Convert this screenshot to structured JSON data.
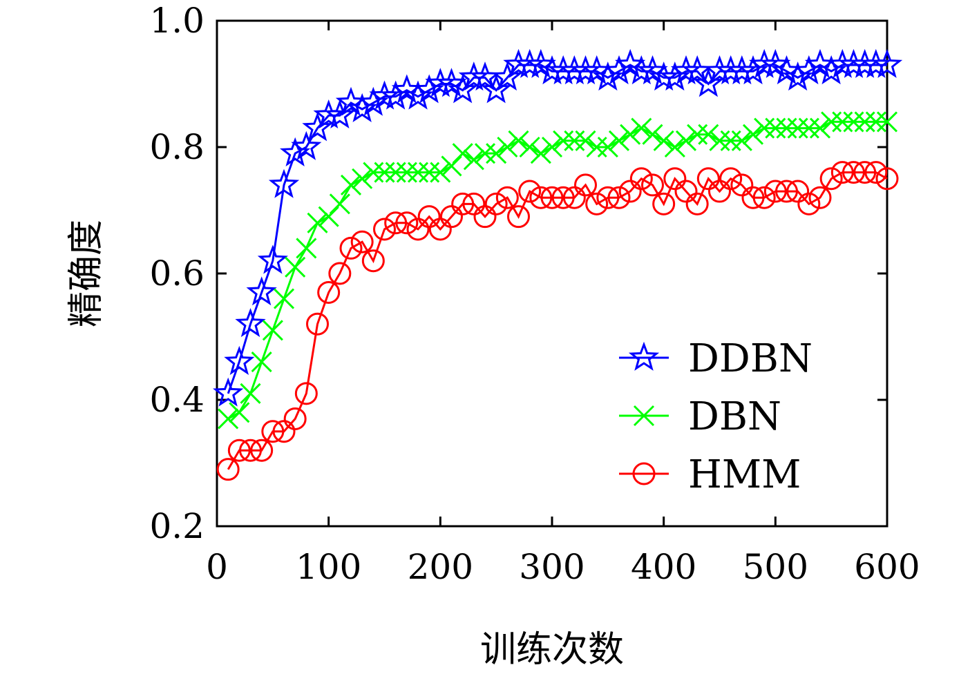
{
  "chart_data": {
    "type": "line",
    "title": "",
    "xlabel": "训练次数",
    "ylabel": "精确度",
    "xlim": [
      0,
      600
    ],
    "ylim": [
      0.2,
      1.0
    ],
    "xticks": [
      "0",
      "100",
      "200",
      "300",
      "400",
      "500",
      "600"
    ],
    "yticks": [
      "0.2",
      "0.4",
      "0.6",
      "0.8",
      "1.0"
    ],
    "grid": false,
    "legend_position": "bottom-right",
    "x": [
      10,
      20,
      30,
      40,
      50,
      60,
      70,
      80,
      90,
      100,
      110,
      120,
      130,
      140,
      150,
      160,
      170,
      180,
      190,
      200,
      210,
      220,
      230,
      240,
      250,
      260,
      270,
      280,
      290,
      300,
      310,
      320,
      330,
      340,
      350,
      360,
      370,
      380,
      390,
      400,
      410,
      420,
      430,
      440,
      450,
      460,
      470,
      480,
      490,
      500,
      510,
      520,
      530,
      540,
      550,
      560,
      570,
      580,
      590,
      600
    ],
    "series": [
      {
        "name": "DDBN",
        "color": "#0000ff",
        "marker": "star",
        "values": [
          0.41,
          0.46,
          0.52,
          0.57,
          0.62,
          0.74,
          0.79,
          0.8,
          0.83,
          0.85,
          0.85,
          0.87,
          0.86,
          0.87,
          0.88,
          0.88,
          0.89,
          0.88,
          0.89,
          0.9,
          0.9,
          0.89,
          0.91,
          0.91,
          0.89,
          0.91,
          0.93,
          0.93,
          0.93,
          0.92,
          0.92,
          0.92,
          0.92,
          0.92,
          0.91,
          0.92,
          0.93,
          0.92,
          0.92,
          0.91,
          0.91,
          0.92,
          0.92,
          0.9,
          0.92,
          0.92,
          0.92,
          0.92,
          0.93,
          0.93,
          0.92,
          0.91,
          0.92,
          0.93,
          0.92,
          0.93,
          0.93,
          0.93,
          0.93,
          0.93
        ]
      },
      {
        "name": "DBN",
        "color": "#00ff00",
        "marker": "x",
        "values": [
          0.37,
          0.38,
          0.41,
          0.46,
          0.51,
          0.56,
          0.61,
          0.64,
          0.68,
          0.69,
          0.71,
          0.74,
          0.75,
          0.76,
          0.76,
          0.76,
          0.76,
          0.76,
          0.76,
          0.76,
          0.77,
          0.79,
          0.78,
          0.79,
          0.79,
          0.8,
          0.81,
          0.8,
          0.79,
          0.8,
          0.81,
          0.81,
          0.81,
          0.8,
          0.8,
          0.81,
          0.82,
          0.83,
          0.82,
          0.81,
          0.8,
          0.81,
          0.82,
          0.82,
          0.81,
          0.81,
          0.81,
          0.82,
          0.83,
          0.83,
          0.83,
          0.83,
          0.83,
          0.83,
          0.84,
          0.84,
          0.84,
          0.84,
          0.84,
          0.84
        ]
      },
      {
        "name": "HMM",
        "color": "#ff0000",
        "marker": "circle",
        "values": [
          0.29,
          0.32,
          0.32,
          0.32,
          0.35,
          0.35,
          0.37,
          0.41,
          0.52,
          0.57,
          0.6,
          0.64,
          0.65,
          0.62,
          0.67,
          0.68,
          0.68,
          0.67,
          0.69,
          0.67,
          0.69,
          0.71,
          0.71,
          0.69,
          0.71,
          0.72,
          0.69,
          0.73,
          0.72,
          0.72,
          0.72,
          0.72,
          0.74,
          0.71,
          0.72,
          0.72,
          0.73,
          0.75,
          0.74,
          0.71,
          0.75,
          0.73,
          0.71,
          0.75,
          0.73,
          0.75,
          0.74,
          0.72,
          0.72,
          0.73,
          0.73,
          0.73,
          0.71,
          0.72,
          0.75,
          0.76,
          0.76,
          0.76,
          0.76,
          0.75
        ]
      }
    ]
  }
}
